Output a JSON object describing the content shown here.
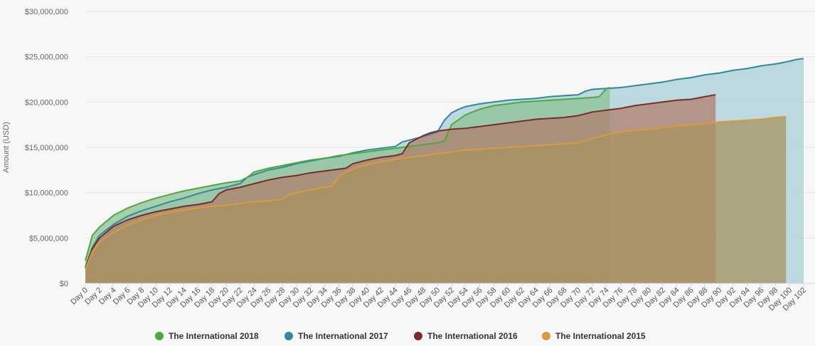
{
  "chart_data": {
    "type": "area",
    "title": "",
    "xlabel": "",
    "ylabel": "Amount (USD)",
    "ylim": [
      0,
      30000000
    ],
    "y_ticks": [
      "$0",
      "$5,000,000",
      "$10,000,000",
      "$15,000,000",
      "$20,000,000",
      "$25,000,000",
      "$30,000,000"
    ],
    "y_tick_values": [
      0,
      5000000,
      10000000,
      15000000,
      20000000,
      25000000,
      30000000
    ],
    "x_ticks": [
      "Day 0",
      "Day 2",
      "Day 4",
      "Day 6",
      "Day 8",
      "Day 10",
      "Day 12",
      "Day 14",
      "Day 16",
      "Day 18",
      "Day 20",
      "Day 22",
      "Day 24",
      "Day 26",
      "Day 28",
      "Day 30",
      "Day 32",
      "Day 34",
      "Day 36",
      "Day 38",
      "Day 40",
      "Day 42",
      "Day 44",
      "Day 46",
      "Day 48",
      "Day 50",
      "Day 52",
      "Day 54",
      "Day 56",
      "Day 58",
      "Day 60",
      "Day 62",
      "Day 64",
      "Day 66",
      "Day 68",
      "Day 70",
      "Day 72",
      "Day 74",
      "Day 76",
      "Day 78",
      "Day 80",
      "Day 82",
      "Day 84",
      "Day 86",
      "Day 88",
      "Day 90",
      "Day 92",
      "Day 94",
      "Day 96",
      "Day 98",
      "Day 100",
      "Day 102"
    ],
    "x_max_day": 102,
    "legend_position": "bottom-center",
    "series": [
      {
        "name": "The International 2015",
        "color": "#d89c3a",
        "fill": "#a89260",
        "points": [
          [
            0,
            1600000
          ],
          [
            1,
            3500000
          ],
          [
            2,
            4500000
          ],
          [
            4,
            5600000
          ],
          [
            6,
            6400000
          ],
          [
            8,
            7000000
          ],
          [
            10,
            7500000
          ],
          [
            12,
            7800000
          ],
          [
            14,
            8100000
          ],
          [
            16,
            8300000
          ],
          [
            18,
            8500000
          ],
          [
            20,
            8600000
          ],
          [
            22,
            8800000
          ],
          [
            24,
            9000000
          ],
          [
            26,
            9100000
          ],
          [
            28,
            9300000
          ],
          [
            29,
            9800000
          ],
          [
            30,
            10000000
          ],
          [
            32,
            10300000
          ],
          [
            34,
            10600000
          ],
          [
            35,
            10700000
          ],
          [
            36,
            11800000
          ],
          [
            37,
            12300000
          ],
          [
            38,
            12600000
          ],
          [
            39,
            12900000
          ],
          [
            40,
            13100000
          ],
          [
            42,
            13400000
          ],
          [
            44,
            13700000
          ],
          [
            46,
            13900000
          ],
          [
            48,
            14100000
          ],
          [
            50,
            14300000
          ],
          [
            52,
            14500000
          ],
          [
            54,
            14700000
          ],
          [
            56,
            14800000
          ],
          [
            58,
            14900000
          ],
          [
            60,
            15000000
          ],
          [
            62,
            15100000
          ],
          [
            64,
            15200000
          ],
          [
            66,
            15300000
          ],
          [
            68,
            15400000
          ],
          [
            70,
            15500000
          ],
          [
            71,
            15700000
          ],
          [
            72,
            16000000
          ],
          [
            74,
            16400000
          ],
          [
            76,
            16700000
          ],
          [
            78,
            16900000
          ],
          [
            80,
            17000000
          ],
          [
            82,
            17200000
          ],
          [
            84,
            17400000
          ],
          [
            86,
            17500000
          ],
          [
            88,
            17600000
          ],
          [
            90,
            17800000
          ],
          [
            92,
            17900000
          ],
          [
            94,
            18000000
          ],
          [
            96,
            18100000
          ],
          [
            98,
            18300000
          ],
          [
            99.5,
            18400000
          ]
        ]
      },
      {
        "name": "The International 2016",
        "color": "#7a2b2b",
        "fill": "#b07f6c",
        "points": [
          [
            0,
            1700000
          ],
          [
            1,
            3800000
          ],
          [
            2,
            5000000
          ],
          [
            4,
            6300000
          ],
          [
            6,
            7000000
          ],
          [
            8,
            7500000
          ],
          [
            10,
            7900000
          ],
          [
            12,
            8200000
          ],
          [
            14,
            8500000
          ],
          [
            16,
            8700000
          ],
          [
            18,
            9000000
          ],
          [
            19,
            9900000
          ],
          [
            20,
            10300000
          ],
          [
            22,
            10600000
          ],
          [
            24,
            11000000
          ],
          [
            26,
            11400000
          ],
          [
            28,
            11700000
          ],
          [
            30,
            11900000
          ],
          [
            32,
            12200000
          ],
          [
            34,
            12400000
          ],
          [
            36,
            12600000
          ],
          [
            37,
            12700000
          ],
          [
            38,
            13200000
          ],
          [
            40,
            13600000
          ],
          [
            42,
            13900000
          ],
          [
            44,
            14100000
          ],
          [
            45,
            14300000
          ],
          [
            46,
            15500000
          ],
          [
            48,
            16300000
          ],
          [
            49,
            16600000
          ],
          [
            50,
            16800000
          ],
          [
            52,
            17000000
          ],
          [
            54,
            17100000
          ],
          [
            56,
            17300000
          ],
          [
            58,
            17500000
          ],
          [
            60,
            17700000
          ],
          [
            62,
            17900000
          ],
          [
            64,
            18100000
          ],
          [
            66,
            18200000
          ],
          [
            68,
            18300000
          ],
          [
            70,
            18500000
          ],
          [
            71,
            18700000
          ],
          [
            72,
            18900000
          ],
          [
            74,
            19100000
          ],
          [
            76,
            19300000
          ],
          [
            78,
            19600000
          ],
          [
            80,
            19800000
          ],
          [
            82,
            20000000
          ],
          [
            84,
            20200000
          ],
          [
            86,
            20300000
          ],
          [
            88,
            20600000
          ],
          [
            89.5,
            20800000
          ]
        ]
      },
      {
        "name": "The International 2017",
        "color": "#2f8a9a",
        "fill": "#a9cfd8",
        "points": [
          [
            0,
            1800000
          ],
          [
            1,
            4000000
          ],
          [
            2,
            5300000
          ],
          [
            4,
            6500000
          ],
          [
            6,
            7400000
          ],
          [
            8,
            8000000
          ],
          [
            10,
            8500000
          ],
          [
            12,
            9000000
          ],
          [
            14,
            9400000
          ],
          [
            16,
            9900000
          ],
          [
            18,
            10300000
          ],
          [
            20,
            10600000
          ],
          [
            22,
            11000000
          ],
          [
            23,
            11700000
          ],
          [
            24,
            12000000
          ],
          [
            26,
            12500000
          ],
          [
            28,
            12800000
          ],
          [
            30,
            13200000
          ],
          [
            32,
            13500000
          ],
          [
            34,
            13800000
          ],
          [
            36,
            14000000
          ],
          [
            38,
            14400000
          ],
          [
            40,
            14700000
          ],
          [
            42,
            14900000
          ],
          [
            44,
            15100000
          ],
          [
            45,
            15600000
          ],
          [
            46,
            15800000
          ],
          [
            48,
            16200000
          ],
          [
            50,
            16700000
          ],
          [
            51,
            18000000
          ],
          [
            52,
            18800000
          ],
          [
            53,
            19200000
          ],
          [
            54,
            19500000
          ],
          [
            56,
            19800000
          ],
          [
            58,
            20000000
          ],
          [
            60,
            20200000
          ],
          [
            62,
            20300000
          ],
          [
            64,
            20400000
          ],
          [
            66,
            20600000
          ],
          [
            68,
            20700000
          ],
          [
            70,
            20800000
          ],
          [
            71,
            21200000
          ],
          [
            72,
            21400000
          ],
          [
            74,
            21500000
          ],
          [
            76,
            21600000
          ],
          [
            78,
            21800000
          ],
          [
            80,
            22000000
          ],
          [
            82,
            22200000
          ],
          [
            84,
            22500000
          ],
          [
            86,
            22700000
          ],
          [
            88,
            23000000
          ],
          [
            90,
            23200000
          ],
          [
            92,
            23500000
          ],
          [
            94,
            23700000
          ],
          [
            96,
            24000000
          ],
          [
            98,
            24200000
          ],
          [
            100,
            24500000
          ],
          [
            101,
            24700000
          ],
          [
            102,
            24800000
          ]
        ]
      },
      {
        "name": "The International 2018",
        "color": "#4ea83a",
        "fill": "#8cc295",
        "points": [
          [
            0,
            2500000
          ],
          [
            1,
            5300000
          ],
          [
            2,
            6200000
          ],
          [
            4,
            7500000
          ],
          [
            6,
            8300000
          ],
          [
            8,
            8900000
          ],
          [
            10,
            9400000
          ],
          [
            12,
            9800000
          ],
          [
            14,
            10200000
          ],
          [
            16,
            10500000
          ],
          [
            18,
            10800000
          ],
          [
            20,
            11100000
          ],
          [
            22,
            11300000
          ],
          [
            23,
            11700000
          ],
          [
            24,
            12300000
          ],
          [
            26,
            12700000
          ],
          [
            28,
            13000000
          ],
          [
            30,
            13300000
          ],
          [
            32,
            13600000
          ],
          [
            34,
            13800000
          ],
          [
            36,
            14100000
          ],
          [
            38,
            14300000
          ],
          [
            40,
            14500000
          ],
          [
            42,
            14700000
          ],
          [
            44,
            14900000
          ],
          [
            46,
            15100000
          ],
          [
            48,
            15300000
          ],
          [
            50,
            15500000
          ],
          [
            51,
            15700000
          ],
          [
            52,
            17500000
          ],
          [
            54,
            18600000
          ],
          [
            56,
            19200000
          ],
          [
            58,
            19600000
          ],
          [
            60,
            19800000
          ],
          [
            62,
            20000000
          ],
          [
            64,
            20100000
          ],
          [
            66,
            20200000
          ],
          [
            68,
            20300000
          ],
          [
            70,
            20400000
          ],
          [
            72,
            20500000
          ],
          [
            73,
            20600000
          ],
          [
            74,
            21500000
          ],
          [
            74.5,
            21600000
          ]
        ]
      }
    ]
  }
}
